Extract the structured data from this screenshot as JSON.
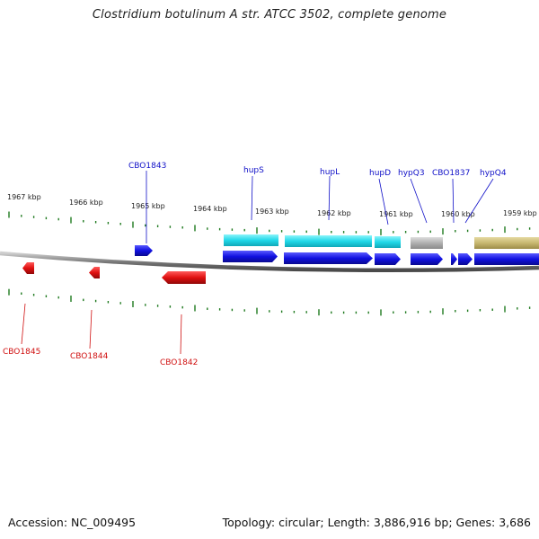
{
  "title": "Clostridium botulinum A str. ATCC 3502, complete genome",
  "footer": {
    "accession": "Accession: NC_009495",
    "summary": "Topology: circular; Length: 3,886,916 bp; Genes: 3,686"
  },
  "colors": {
    "forward_gene": "#1010e0",
    "reverse_gene": "#e01010",
    "cyan_feature": "#20d8e8",
    "gray_feature": "#b0b0b0",
    "olive_feature": "#c8b870",
    "tick": "#1f7a1f",
    "backbone": "#8a8a8a"
  },
  "scale_labels": [
    "1967 kbp",
    "1966 kbp",
    "1965 kbp",
    "1964 kbp",
    "1963 kbp",
    "1962 kbp",
    "1961 kbp",
    "1960 kbp",
    "1959 kbp"
  ],
  "forward_gene_labels": [
    "CBO1843",
    "hupS",
    "hupL",
    "hupD",
    "hypQ3",
    "CBO1837",
    "hypQ4"
  ],
  "reverse_gene_labels": [
    "CBO1845",
    "CBO1844",
    "CBO1842"
  ]
}
